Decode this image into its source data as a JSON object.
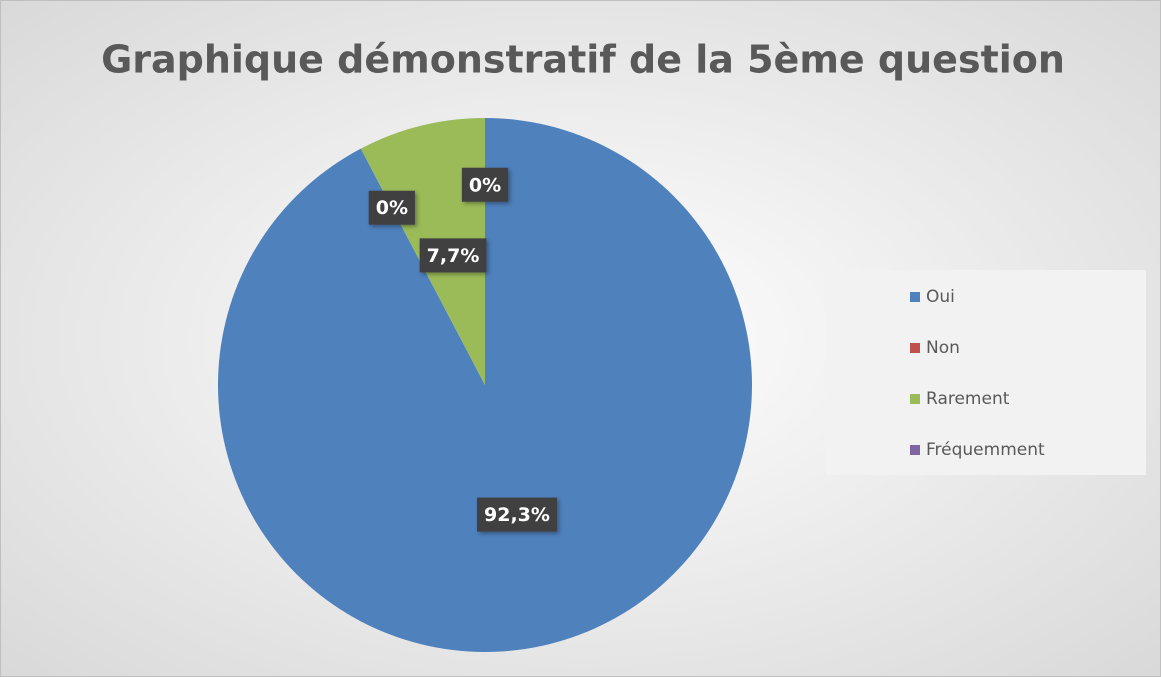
{
  "chart_data": {
    "type": "pie",
    "title": "Graphique démonstratif de la 5ème question",
    "categories": [
      "Oui",
      "Non",
      "Rarement",
      "Fréquemment"
    ],
    "values": [
      92.3,
      0,
      7.7,
      0
    ],
    "value_labels": [
      "92,3%",
      "0%",
      "7,7%",
      "0%"
    ],
    "colors": [
      "#4f81bd",
      "#c0504d",
      "#9bbb59",
      "#8064a2"
    ],
    "legend": "right"
  }
}
